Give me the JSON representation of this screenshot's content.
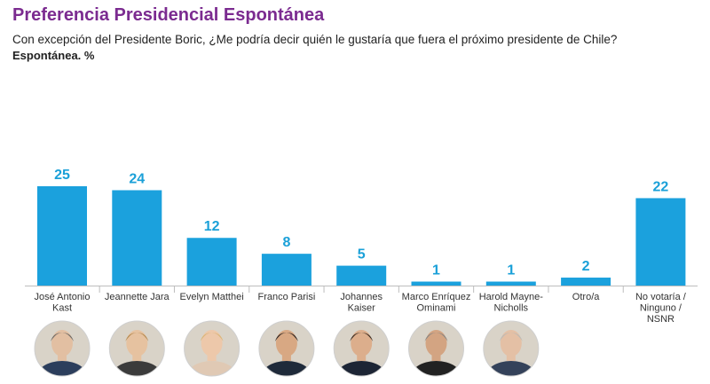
{
  "header": {
    "title": "Preferencia Presidencial Espontánea",
    "subtitle": "Con excepción del Presidente Boric, ¿Me podría decir quién le gustaría que fuera el próximo presidente de Chile?",
    "note": "Espontánea. %"
  },
  "colors": {
    "title": "#7b2b90",
    "bar": "#1ba1dd",
    "value_label": "#1aa0d8",
    "axis": "#bdbdbd",
    "portrait_bg": "#d9d3c8"
  },
  "chart_data": {
    "type": "bar",
    "categories": [
      [
        "José Antonio",
        "Kast"
      ],
      [
        "Jeannette Jara"
      ],
      [
        "Evelyn Matthei"
      ],
      [
        "Franco Parisi"
      ],
      [
        "Johannes",
        "Kaiser"
      ],
      [
        "Marco Enríquez",
        "Ominami"
      ],
      [
        "Harold Mayne-",
        "Nicholls"
      ],
      [
        "Otro/a"
      ],
      [
        "No votaría /",
        "Ninguno /",
        "NSNR"
      ]
    ],
    "values": [
      25,
      24,
      12,
      8,
      5,
      1,
      1,
      2,
      22
    ],
    "ylim": [
      0,
      25
    ],
    "grid": false,
    "legend": "none"
  },
  "portraits": [
    {
      "icon": "person-portrait-icon",
      "candidate": "José Antonio Kast",
      "skin": "#e2bfa2",
      "hair": "#6d6a66",
      "suit": "#2c3e5c"
    },
    {
      "icon": "person-portrait-icon",
      "candidate": "Jeannette Jara",
      "skin": "#e6c2a0",
      "hair": "#b58b52",
      "suit": "#3b3b3b"
    },
    {
      "icon": "person-portrait-icon",
      "candidate": "Evelyn Matthei",
      "skin": "#edc8aa",
      "hair": "#d9b679",
      "suit": "#e0c9b4"
    },
    {
      "icon": "person-portrait-icon",
      "candidate": "Franco Parisi",
      "skin": "#d8a883",
      "hair": "#2b2320",
      "suit": "#1f2a3a"
    },
    {
      "icon": "person-portrait-icon",
      "candidate": "Johannes Kaiser",
      "skin": "#dcae8c",
      "hair": "#3a2c22",
      "suit": "#1d2535"
    },
    {
      "icon": "person-portrait-icon",
      "candidate": "Marco Enríquez Ominami",
      "skin": "#d3a482",
      "hair": "#8a8682",
      "suit": "#222222"
    },
    {
      "icon": "person-portrait-icon",
      "candidate": "Harold Mayne-Nicholls",
      "skin": "#e4c0a5",
      "hair": "#bcbab5",
      "suit": "#34425a"
    }
  ]
}
